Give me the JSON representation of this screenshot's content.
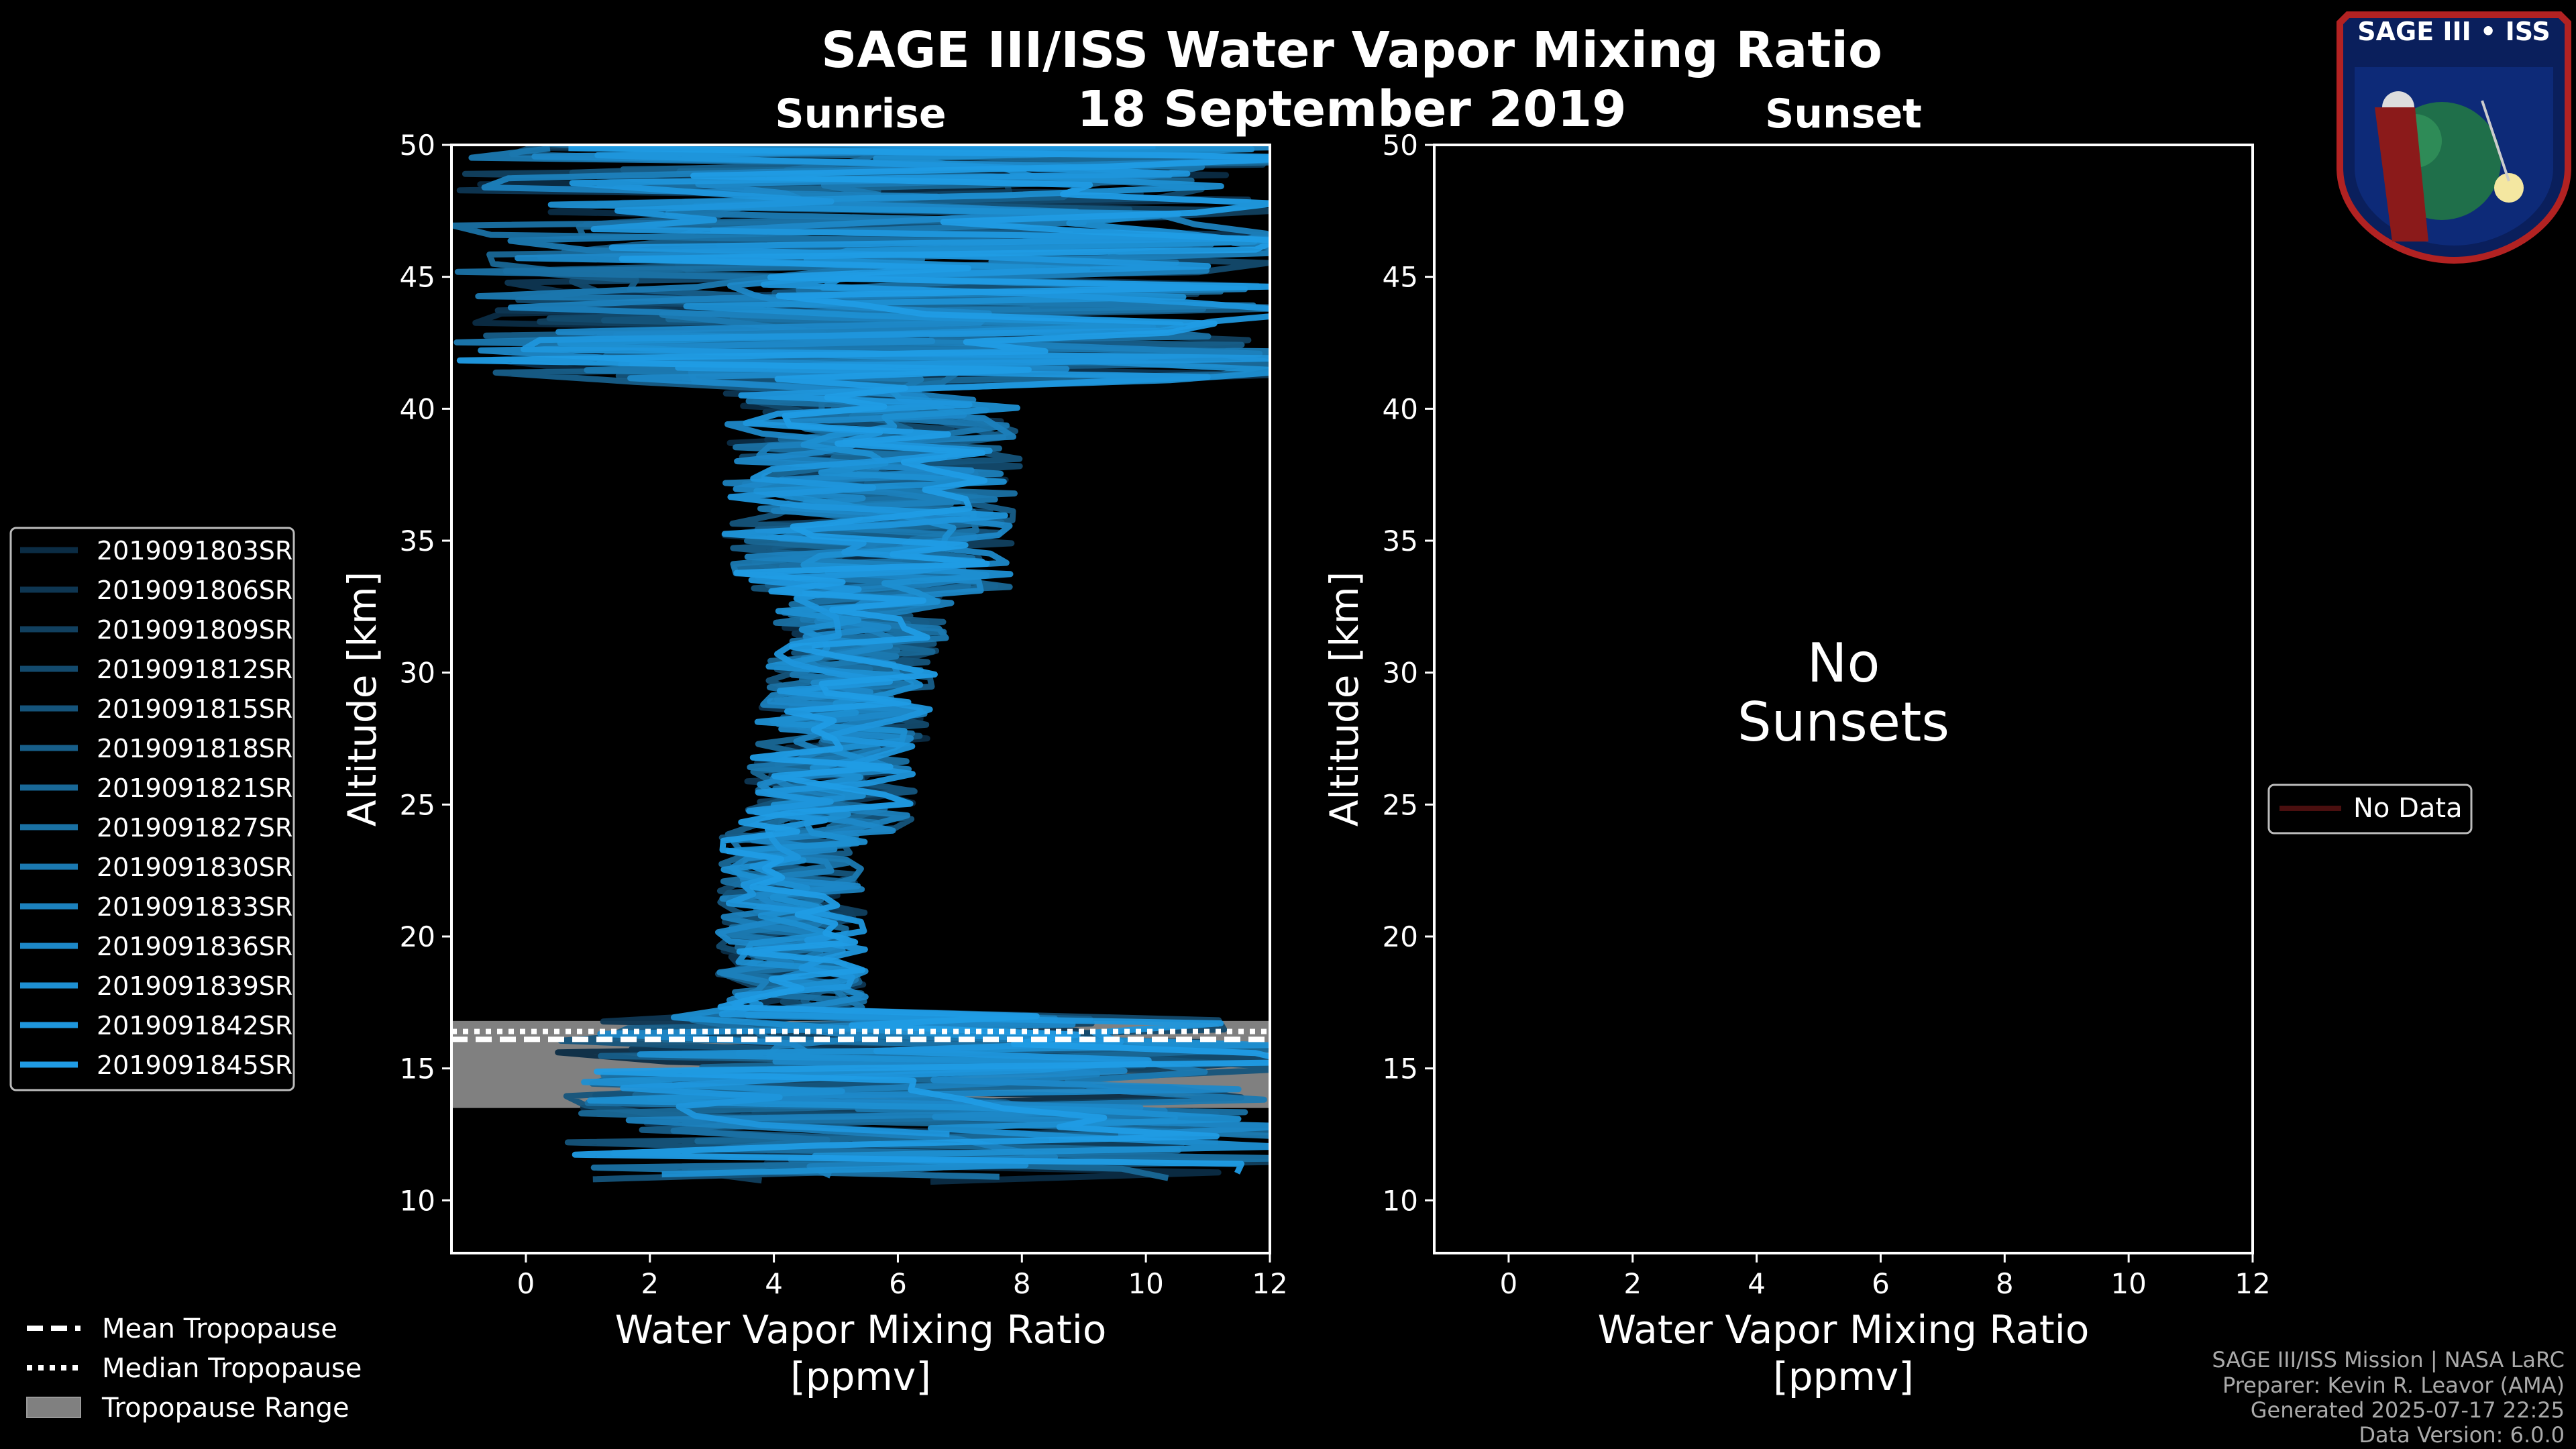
{
  "chart_data": [
    {
      "type": "line",
      "panel": "sunrise",
      "title": "SAGE III/ISS Water Vapor Mixing Ratio",
      "date": "18 September 2019",
      "subtitle": "Sunrise",
      "xlabel_line1": "Water Vapor Mixing Ratio",
      "xlabel_line2": "[ppmv]",
      "ylabel": "Altitude [km]",
      "xlim": [
        -1.2,
        12
      ],
      "ylim": [
        8,
        50
      ],
      "xticks": [
        0,
        2,
        4,
        6,
        8,
        10,
        12
      ],
      "yticks": [
        10,
        15,
        20,
        25,
        30,
        35,
        40,
        45,
        50
      ],
      "tropopause": {
        "range_km": [
          13.5,
          16.8
        ],
        "mean_km": 16.1,
        "median_km": 16.4
      },
      "series": [
        {
          "name": "2019091803SR",
          "color": "#0b2c44",
          "seed": 3
        },
        {
          "name": "2019091806SR",
          "color": "#0e3652",
          "seed": 6
        },
        {
          "name": "2019091809SR",
          "color": "#11405f",
          "seed": 9
        },
        {
          "name": "2019091812SR",
          "color": "#134a6d",
          "seed": 12
        },
        {
          "name": "2019091815SR",
          "color": "#15547b",
          "seed": 15
        },
        {
          "name": "2019091818SR",
          "color": "#175e89",
          "seed": 18
        },
        {
          "name": "2019091821SR",
          "color": "#196897",
          "seed": 21
        },
        {
          "name": "2019091827SR",
          "color": "#1a71a4",
          "seed": 27
        },
        {
          "name": "2019091830SR",
          "color": "#1b79b1",
          "seed": 30
        },
        {
          "name": "2019091833SR",
          "color": "#1c81bd",
          "seed": 33
        },
        {
          "name": "2019091836SR",
          "color": "#1d88c8",
          "seed": 36
        },
        {
          "name": "2019091839SR",
          "color": "#1e8fd2",
          "seed": 39
        },
        {
          "name": "2019091842SR",
          "color": "#1f96dc",
          "seed": 42
        },
        {
          "name": "2019091845SR",
          "color": "#209ce5",
          "seed": 45
        }
      ],
      "legend_bottom": [
        "Mean Tropopause",
        "Median Tropopause",
        "Tropopause Range"
      ]
    },
    {
      "type": "line",
      "panel": "sunset",
      "subtitle": "Sunset",
      "xlabel_line1": "Water Vapor Mixing Ratio",
      "xlabel_line2": "[ppmv]",
      "ylabel": "Altitude [km]",
      "xlim": [
        -1.2,
        12
      ],
      "ylim": [
        8,
        50
      ],
      "xticks": [
        0,
        2,
        4,
        6,
        8,
        10,
        12
      ],
      "yticks": [
        10,
        15,
        20,
        25,
        30,
        35,
        40,
        45,
        50
      ],
      "message_line1": "No",
      "message_line2": "Sunsets",
      "legend": [
        "No Data"
      ],
      "series": []
    }
  ],
  "logo": {
    "text": "SAGE III • ISS"
  },
  "footer": {
    "line1": "SAGE III/ISS Mission | NASA LaRC",
    "line2": "Preparer: Kevin R. Leavor (AMA)",
    "line3": "Generated 2025-07-17 22:25",
    "line4": "Data Version: 6.0.0"
  }
}
